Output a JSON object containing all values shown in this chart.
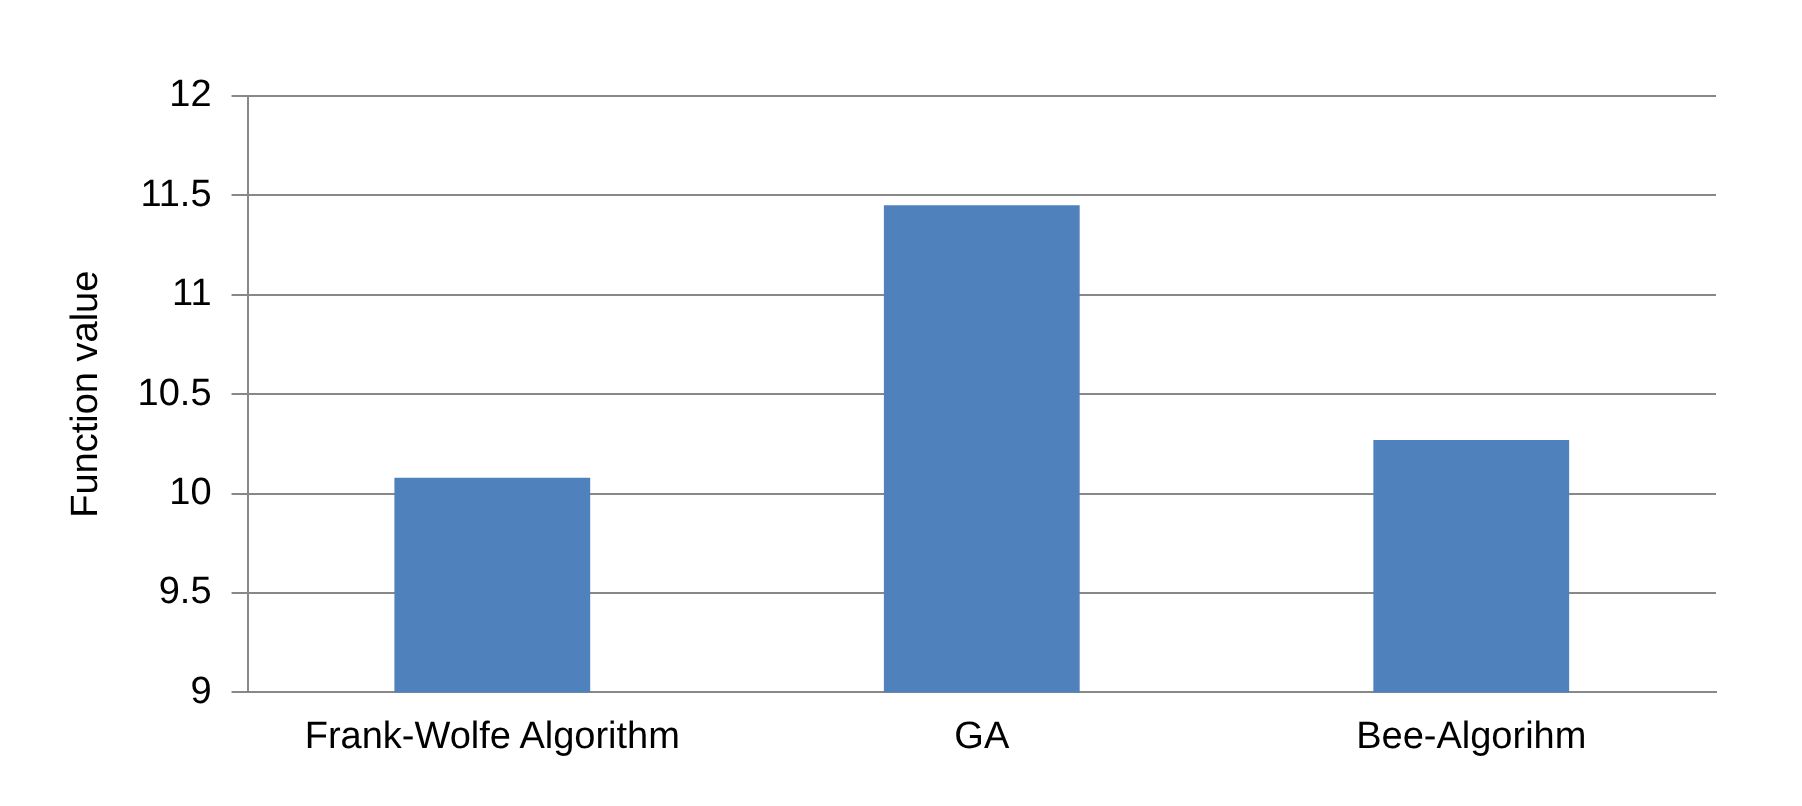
{
  "chart_data": {
    "type": "bar",
    "ylabel": "Function value",
    "categories": [
      "Frank-Wolfe Algorithm",
      "GA",
      "Bee-Algorihm"
    ],
    "values": [
      10.08,
      11.45,
      10.27
    ],
    "color": "#4f81bd",
    "ylim": [
      9,
      12
    ],
    "yticks": [
      9,
      9.5,
      10,
      10.5,
      11,
      11.5,
      12
    ],
    "grid": "y",
    "legend": false
  }
}
